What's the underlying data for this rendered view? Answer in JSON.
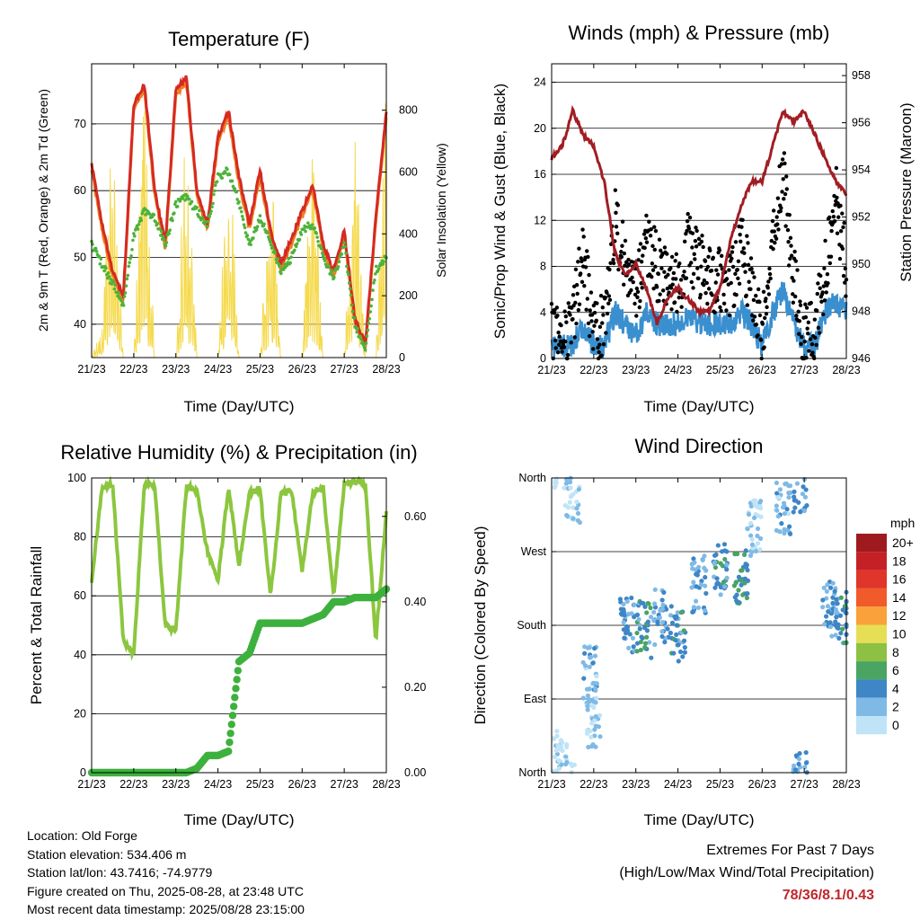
{
  "x_ticks": [
    "21/23",
    "22/23",
    "23/23",
    "24/23",
    "25/23",
    "26/23",
    "27/23",
    "28/23"
  ],
  "temperature": {
    "title": "Temperature (F)",
    "xlabel": "Time (Day/UTC)",
    "ylabel_left": "2m & 9m T (Red, Orange) & 2m Td (Green)",
    "ylabel_right": "Solar Insolation (Yellow)",
    "y_ticks_left": [
      "40",
      "50",
      "60",
      "70"
    ],
    "y_ticks_right": [
      "0",
      "200",
      "400",
      "600",
      "800"
    ],
    "colors": {
      "t2m": "#d42a22",
      "t9m": "#f07f22",
      "td": "#4cb33a",
      "solar": "#f5d94a"
    }
  },
  "winds": {
    "title": "Winds (mph) & Pressure (mb)",
    "xlabel": "Time (Day/UTC)",
    "ylabel_left": "Sonic/Prop Wind & Gust (Blue, Black)",
    "ylabel_right": "Station Pressure (Maroon)",
    "y_ticks_left": [
      "0",
      "4",
      "8",
      "12",
      "16",
      "20",
      "24"
    ],
    "y_ticks_right": [
      "946",
      "948",
      "950",
      "952",
      "954",
      "956",
      "958"
    ],
    "colors": {
      "wind": "#3a8fcf",
      "gust": "#000000",
      "pressure": "#a11d24"
    }
  },
  "humidity": {
    "title": "Relative Humidity (%) & Precipitation (in)",
    "xlabel": "Time (Day/UTC)",
    "ylabel_left": "Percent & Total Rainfall",
    "y_ticks_left": [
      "0",
      "20",
      "40",
      "60",
      "80",
      "100"
    ],
    "y_ticks_right": [
      "0.00",
      "0.20",
      "0.40",
      "0.60"
    ],
    "colors": {
      "rh": "#8cc63f",
      "precip": "#3db13d"
    }
  },
  "wind_direction": {
    "title": "Wind Direction",
    "xlabel": "Time (Day/UTC)",
    "ylabel_left": "Direction (Colored By Speed)",
    "y_ticks_left": [
      "North",
      "East",
      "South",
      "West",
      "North"
    ],
    "legend_title": "mph",
    "legend_labels": [
      "20+",
      "18",
      "16",
      "14",
      "12",
      "10",
      "8",
      "6",
      "4",
      "2",
      "0"
    ],
    "legend_colors": [
      "#9e1a1e",
      "#c42026",
      "#e0352b",
      "#f15a29",
      "#f9a13a",
      "#e6df55",
      "#8dc043",
      "#4aa462",
      "#3e86c6",
      "#7fbae6",
      "#bfe4f7"
    ]
  },
  "info": {
    "location": "Location: Old Forge",
    "elevation": "Station elevation: 534.406 m",
    "latlon": "Station lat/lon: 43.7416; -74.9779",
    "created": "Figure created on Thu, 2025-08-28, at 23:48 UTC",
    "recent": "Most recent data timestamp: 2025/08/28 23:15:00"
  },
  "extremes": {
    "line1": "Extremes For Past 7 Days",
    "line2": "(High/Low/Max Wind/Total Precipitation)",
    "values": "78/36/8.1/0.43"
  },
  "chart_data": [
    {
      "type": "line",
      "title": "Temperature (F)",
      "x": [
        0,
        0.25,
        0.5,
        0.75,
        1,
        1.25,
        1.5,
        1.75,
        2,
        2.25,
        2.5,
        2.75,
        3,
        3.25,
        3.5,
        3.75,
        4,
        4.25,
        4.5,
        4.75,
        5,
        5.25,
        5.5,
        5.75,
        6,
        6.25,
        6.5,
        6.75,
        7
      ],
      "series": [
        {
          "name": "2m T",
          "values": [
            64,
            55,
            48,
            44,
            73,
            76,
            60,
            52,
            75,
            77,
            60,
            55,
            68,
            72,
            62,
            55,
            63,
            54,
            49,
            53,
            57,
            61,
            52,
            48,
            54,
            41,
            37,
            56,
            72
          ]
        },
        {
          "name": "2m Td",
          "values": [
            52,
            49,
            46,
            43,
            53,
            57,
            56,
            52,
            58,
            59,
            57,
            55,
            62,
            63,
            58,
            52,
            56,
            52,
            48,
            50,
            54,
            55,
            50,
            47,
            52,
            40,
            36,
            48,
            50
          ]
        },
        {
          "name": "Solar Insolation",
          "values": [
            0,
            100,
            850,
            0,
            0,
            900,
            0,
            0,
            0,
            820,
            0,
            0,
            0,
            780,
            0,
            0,
            0,
            700,
            0,
            0,
            0,
            800,
            0,
            0,
            0,
            900,
            0,
            0,
            950
          ]
        }
      ],
      "xlabel": "Time (Day/UTC)",
      "ylim": [
        35,
        79
      ],
      "ylim_right": [
        0,
        950
      ]
    },
    {
      "type": "line",
      "title": "Winds (mph) & Pressure (mb)",
      "x": [
        0,
        0.25,
        0.5,
        0.75,
        1,
        1.25,
        1.5,
        1.75,
        2,
        2.25,
        2.5,
        2.75,
        3,
        3.25,
        3.5,
        3.75,
        4,
        4.25,
        4.5,
        4.75,
        5,
        5.25,
        5.5,
        5.75,
        6,
        6.25,
        6.5,
        6.75,
        7
      ],
      "series": [
        {
          "name": "Wind",
          "values": [
            1,
            1,
            1,
            3,
            1,
            1,
            4,
            3,
            2,
            4,
            3,
            3,
            3,
            4,
            3,
            3,
            3,
            3,
            4,
            3,
            1,
            4,
            6,
            3,
            1,
            1,
            4,
            5,
            4
          ]
        },
        {
          "name": "Gust",
          "values": [
            2,
            2,
            3,
            9,
            2,
            3,
            12,
            8,
            5,
            10,
            8,
            7,
            6,
            10,
            8,
            7,
            7,
            6,
            10,
            6,
            2,
            10,
            16,
            7,
            2,
            2,
            8,
            14,
            8
          ]
        },
        {
          "name": "Pressure",
          "values": [
            954.5,
            955.0,
            956.5,
            955.5,
            955.0,
            953.5,
            950.5,
            949.5,
            950.0,
            949.0,
            947.5,
            948.5,
            949.0,
            948.5,
            948.0,
            948.0,
            949.0,
            951.0,
            952.5,
            953.5,
            953.5,
            955.0,
            956.5,
            956.0,
            956.5,
            955.5,
            954.5,
            953.5,
            953.0
          ]
        }
      ],
      "xlabel": "Time (Day/UTC)",
      "ylim": [
        0,
        25.6
      ],
      "ylim_right": [
        946,
        958.5
      ]
    },
    {
      "type": "line",
      "title": "Relative Humidity (%) & Precipitation (in)",
      "x": [
        0,
        0.25,
        0.5,
        0.75,
        1,
        1.25,
        1.5,
        1.75,
        2,
        2.25,
        2.5,
        2.75,
        3,
        3.25,
        3.5,
        3.75,
        4,
        4.25,
        4.5,
        4.75,
        5,
        5.25,
        5.5,
        5.75,
        6,
        6.25,
        6.5,
        6.75,
        7
      ],
      "series": [
        {
          "name": "RH",
          "values": [
            65,
            97,
            98,
            45,
            40,
            98,
            97,
            50,
            48,
            97,
            96,
            75,
            65,
            97,
            70,
            95,
            96,
            60,
            95,
            96,
            68,
            95,
            97,
            60,
            98,
            99,
            98,
            45,
            88
          ]
        },
        {
          "name": "Precipitation",
          "values": [
            0,
            0,
            0,
            0,
            0,
            0,
            0,
            0,
            0,
            0,
            0.01,
            0.04,
            0.04,
            0.05,
            0.26,
            0.28,
            0.35,
            0.35,
            0.35,
            0.35,
            0.35,
            0.36,
            0.37,
            0.4,
            0.4,
            0.41,
            0.41,
            0.41,
            0.43
          ]
        }
      ],
      "xlabel": "Time (Day/UTC)",
      "ylim": [
        0,
        100
      ],
      "ylim_right": [
        0,
        0.69
      ]
    },
    {
      "type": "scatter",
      "title": "Wind Direction",
      "y_categories": [
        "North",
        "East",
        "South",
        "West",
        "North"
      ],
      "points": [
        {
          "x": 0.2,
          "dir": 20,
          "speed": 1
        },
        {
          "x": 0.5,
          "dir": 340,
          "speed": 2
        },
        {
          "x": 0.9,
          "dir": 120,
          "speed": 3
        },
        {
          "x": 1.0,
          "dir": 60,
          "speed": 2
        },
        {
          "x": 1.8,
          "dir": 180,
          "speed": 4
        },
        {
          "x": 2.2,
          "dir": 175,
          "speed": 5
        },
        {
          "x": 2.6,
          "dir": 190,
          "speed": 4
        },
        {
          "x": 3.0,
          "dir": 170,
          "speed": 5
        },
        {
          "x": 3.5,
          "dir": 230,
          "speed": 4
        },
        {
          "x": 4.0,
          "dir": 250,
          "speed": 5
        },
        {
          "x": 4.5,
          "dir": 240,
          "speed": 6
        },
        {
          "x": 4.8,
          "dir": 300,
          "speed": 2
        },
        {
          "x": 5.5,
          "dir": 320,
          "speed": 3
        },
        {
          "x": 5.9,
          "dir": 350,
          "speed": 4
        },
        {
          "x": 6.6,
          "dir": 200,
          "speed": 4
        },
        {
          "x": 6.9,
          "dir": 190,
          "speed": 5
        }
      ],
      "xlabel": "Time (Day/UTC)",
      "ylim": [
        0,
        360
      ]
    }
  ]
}
